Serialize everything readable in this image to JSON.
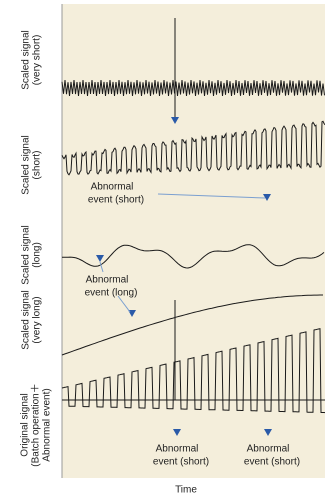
{
  "panels": [
    {
      "label": [
        "Scaled signal",
        "(very short)"
      ]
    },
    {
      "label": [
        "Scaled signal",
        "(short)"
      ]
    },
    {
      "label": [
        "Scaled signal",
        "(long)"
      ]
    },
    {
      "label": [
        "Scaled signal",
        "(very long)"
      ]
    },
    {
      "label": [
        "Original signal",
        "(Batch operation＋",
        "Abnormal event)"
      ]
    }
  ],
  "annotations": [
    {
      "lines": [
        "Abnormal",
        "event (short)"
      ]
    },
    {
      "lines": [
        "Abnormal",
        "event (long)"
      ]
    },
    {
      "lines": [
        "Abnormal",
        "event (short)"
      ]
    },
    {
      "lines": [
        "Abnormal",
        "event (short)"
      ]
    }
  ],
  "x_axis_label": "Time"
}
